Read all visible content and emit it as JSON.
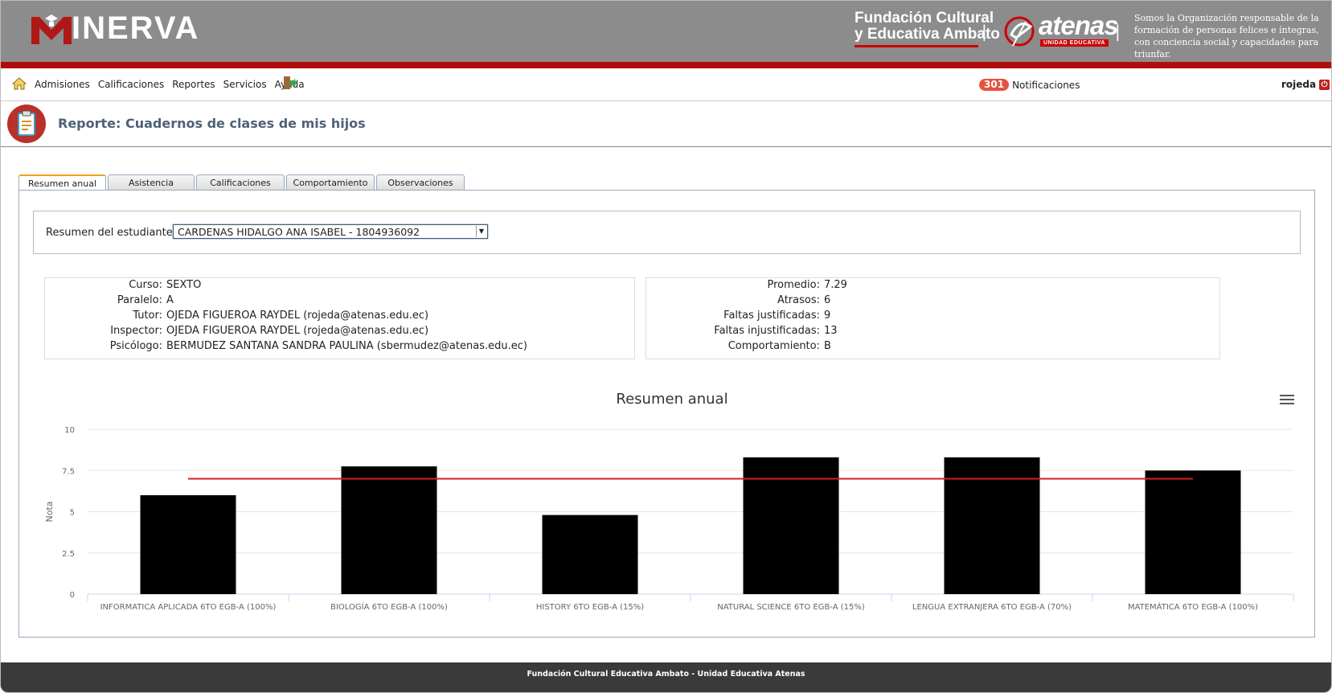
{
  "header": {
    "logo_text": "INERVA",
    "foundation_line1": "Fundación Cultural",
    "foundation_line2": "y Educativa Ambato",
    "school_word": "atenas",
    "school_badge": "UNIDAD EDUCATIVA",
    "mission": "Somos la Organización responsable de la formación de personas felices e íntegras, con conciencia social y capacidades para triunfar."
  },
  "nav": {
    "items": [
      {
        "label": "Admisiones"
      },
      {
        "label": "Calificaciones"
      },
      {
        "label": "Reportes"
      },
      {
        "label": "Servicios"
      },
      {
        "label": "Ayuda"
      }
    ],
    "notif_count": "301",
    "notif_label": "Notificaciones",
    "user": "rojeda"
  },
  "page": {
    "title": "Reporte: Cuadernos de clases de mis hijos"
  },
  "tabs": [
    {
      "label": "Resumen anual",
      "active": true
    },
    {
      "label": "Asistencia"
    },
    {
      "label": "Calificaciones"
    },
    {
      "label": "Comportamiento"
    },
    {
      "label": "Observaciones"
    }
  ],
  "student": {
    "label": "Resumen del estudiante:",
    "selected": "CARDENAS HIDALGO ANA ISABEL - 1804936092"
  },
  "info_left": [
    {
      "k": "Curso:",
      "v": "SEXTO"
    },
    {
      "k": "Paralelo:",
      "v": "A"
    },
    {
      "k": "Tutor:",
      "v": "OJEDA FIGUEROA RAYDEL (rojeda@atenas.edu.ec)"
    },
    {
      "k": "Inspector:",
      "v": "OJEDA FIGUEROA RAYDEL (rojeda@atenas.edu.ec)"
    },
    {
      "k": "Psicólogo:",
      "v": "BERMUDEZ SANTANA SANDRA PAULINA (sbermudez@atenas.edu.ec)"
    }
  ],
  "info_right": [
    {
      "k": "Promedio:",
      "v": "7.29"
    },
    {
      "k": "Atrasos:",
      "v": "6"
    },
    {
      "k": "Faltas justificadas:",
      "v": "9"
    },
    {
      "k": "Faltas injustificadas:",
      "v": "13"
    },
    {
      "k": "Comportamiento:",
      "v": "B"
    }
  ],
  "chart_data": {
    "type": "bar",
    "title": "Resumen anual",
    "xlabel": "",
    "ylabel": "Nota",
    "ylim": [
      0,
      10
    ],
    "yticks": [
      "0",
      "2.5",
      "5",
      "7.5",
      "10"
    ],
    "categories": [
      "INFORMATICA APLICADA 6TO EGB-A (100%)",
      "BIOLOGÍA 6TO EGB-A (100%)",
      "HISTORY 6TO EGB-A (15%)",
      "NATURAL SCIENCE 6TO EGB-A (15%)",
      "LENGUA EXTRANJERA 6TO EGB-A (70%)",
      "MATEMÁTICA 6TO EGB-A (100%)"
    ],
    "values": [
      6.0,
      7.75,
      4.8,
      8.3,
      8.3,
      7.5
    ],
    "reference_line": 7.0,
    "bar_color": "#000000",
    "line_color": "#d62020",
    "grid": true
  },
  "footer": {
    "text": "Fundación Cultural Educativa Ambato - Unidad Educativa Atenas"
  }
}
